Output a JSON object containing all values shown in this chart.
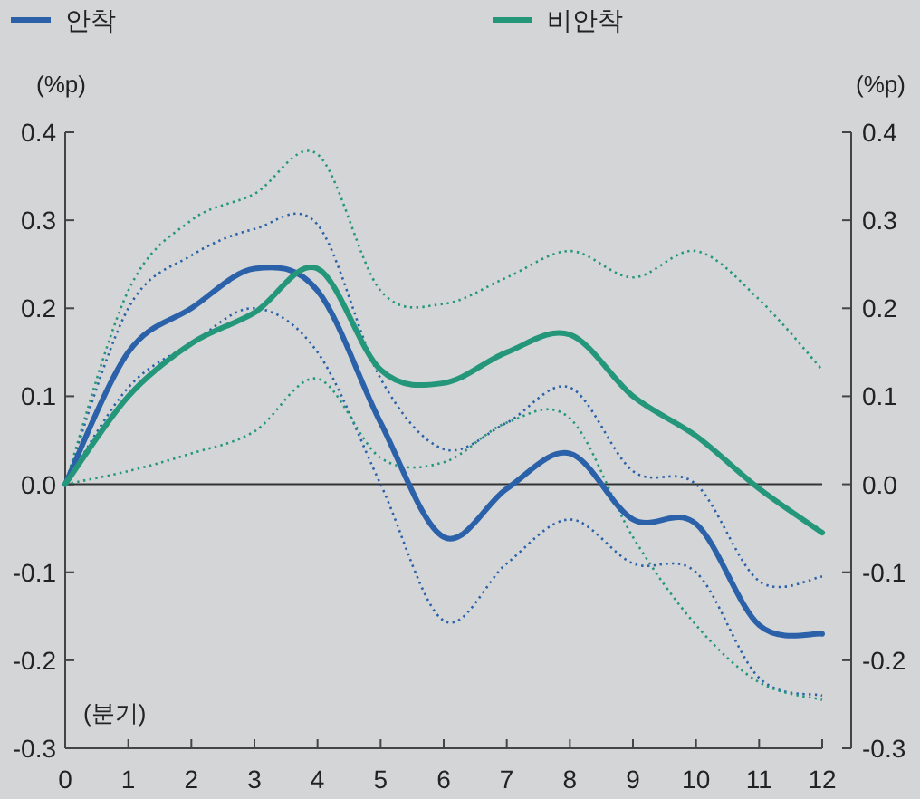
{
  "chart_data": {
    "type": "line",
    "xlabel": "(분기)",
    "ylabel": "(%p)",
    "y2label": "(%p)",
    "x": [
      0,
      1,
      2,
      3,
      4,
      5,
      6,
      7,
      8,
      9,
      10,
      11,
      12
    ],
    "series": [
      {
        "color": "#2b61a9",
        "line_style": "dotted",
        "values": [
          0,
          0.11,
          0.16,
          0.2,
          0.15,
          0,
          -0.155,
          -0.09,
          -0.04,
          -0.09,
          -0.1,
          -0.22,
          -0.24
        ]
      },
      {
        "color": "#2b61a9",
        "line_style": "dotted",
        "values": [
          0,
          0.2,
          0.26,
          0.29,
          0.295,
          0.12,
          0.04,
          0.07,
          0.11,
          0.015,
          0,
          -0.11,
          -0.105
        ]
      },
      {
        "color": "#24977b",
        "line_style": "dotted",
        "values": [
          0,
          0.015,
          0.035,
          0.06,
          0.12,
          0.03,
          0.025,
          0.07,
          0.075,
          -0.06,
          -0.16,
          -0.225,
          -0.245
        ]
      },
      {
        "color": "#24977b",
        "line_style": "dotted",
        "values": [
          0,
          0.22,
          0.3,
          0.33,
          0.375,
          0.22,
          0.205,
          0.235,
          0.265,
          0.235,
          0.265,
          0.21,
          0.13
        ]
      },
      {
        "name": "안착",
        "color": "#2b61a9",
        "values": [
          0,
          0.15,
          0.2,
          0.245,
          0.22,
          0.07,
          -0.06,
          -0.005,
          0.035,
          -0.04,
          -0.045,
          -0.16,
          -0.17
        ]
      },
      {
        "name": "비안착",
        "color": "#24977b",
        "values": [
          0,
          0.1,
          0.16,
          0.195,
          0.245,
          0.13,
          0.115,
          0.15,
          0.17,
          0.1,
          0.055,
          -0.005,
          -0.055
        ]
      }
    ],
    "xlim": [
      0,
      12
    ],
    "xticks": [
      0,
      1,
      2,
      3,
      4,
      5,
      6,
      7,
      8,
      9,
      10,
      11,
      12
    ],
    "ylim": [
      -0.3,
      0.4
    ],
    "yticks": [
      {
        "value": -0.3,
        "label": "-0.3"
      },
      {
        "value": -0.2,
        "label": "-0.2"
      },
      {
        "value": -0.1,
        "label": "-0.1"
      },
      {
        "value": 0,
        "label": "0.0"
      },
      {
        "value": 0.1,
        "label": "0.1"
      },
      {
        "value": 0.2,
        "label": "0.2"
      },
      {
        "value": 0.3,
        "label": "0.3"
      },
      {
        "value": 0.4,
        "label": "0.4"
      }
    ],
    "y2lim": [
      -0.3,
      0.4
    ],
    "y2ticks": [
      {
        "value": -0.3,
        "label": "-0.3"
      },
      {
        "value": -0.2,
        "label": "-0.2"
      },
      {
        "value": -0.1,
        "label": "-0.1"
      },
      {
        "value": 0,
        "label": "0.0"
      },
      {
        "value": 0.1,
        "label": "0.1"
      },
      {
        "value": 0.2,
        "label": "0.2"
      },
      {
        "value": 0.3,
        "label": "0.3"
      },
      {
        "value": 0.4,
        "label": "0.4"
      }
    ],
    "ref_lines": [
      {
        "axis": "y",
        "value": 0,
        "color": "#333333",
        "line_style": "solid"
      }
    ],
    "grid": false,
    "legend": "top",
    "marker": "none",
    "line_style": "solid"
  }
}
